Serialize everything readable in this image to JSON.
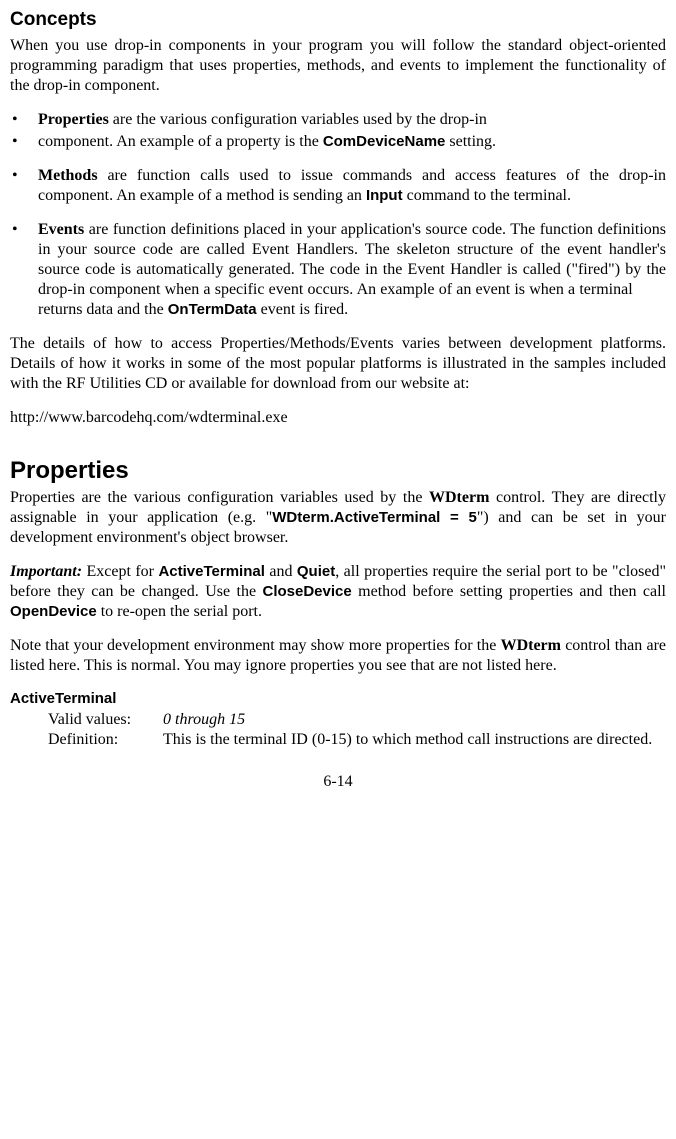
{
  "concepts": {
    "heading": "Concepts",
    "intro": "When you use drop-in components in your program you will follow the standard object-oriented programming paradigm that uses properties, methods, and events to implement the functionality of the drop-in component.",
    "bullets": {
      "b1_lead": "Properties",
      "b1_rest": " are the various configuration variables used by the drop-in",
      "b2_pre": "component. An example of a property is the ",
      "b2_code": "ComDeviceName",
      "b2_post": " setting.",
      "b3_lead": "Methods",
      "b3_mid": " are function calls used to issue commands and access features of the drop-in component. An example of a method is sending an ",
      "b3_code": "Input",
      "b3_post": " command to the terminal.",
      "b4_lead": "Events",
      "b4_mid": " are function definitions placed in your application's source code. The function definitions in your source code are called Event Handlers. The skeleton structure of the event handler's source code is automatically generated. The code in the Event Handler is called (\"fired\") by the drop-in component when a specific event occurs. An example of an event is when a terminal         returns data and the ",
      "b4_code": "OnTermData",
      "b4_post": " event is fired."
    },
    "details_para": "The details of how to access Properties/Methods/Events varies between development platforms. Details of how it works in some of the most popular platforms is illustrated in the samples included with the RF Utilities CD or available for download from our website at:",
    "url": "http://www.barcodehq.com/wdterminal.exe"
  },
  "properties": {
    "heading": "Properties",
    "p1_pre": "Properties are the various configuration variables used by the ",
    "p1_wdterm": "WDterm",
    "p1_mid": " control. They are directly assignable in your application (e.g. \"",
    "p1_code": "WDterm.ActiveTerminal = 5",
    "p1_post": "\") and can be set in your development environment's object browser.",
    "imp_label": "Important:",
    "imp_pre": " Except for ",
    "imp_active": "ActiveTerminal",
    "imp_and": " and ",
    "imp_quiet": "Quiet",
    "imp_mid": ", all properties require the serial port to be \"closed\" before they can be changed. Use the ",
    "imp_close": "CloseDevice",
    "imp_mid2": " method before setting properties and then call ",
    "imp_open": "OpenDevice",
    "imp_post": " to re-open the serial port.",
    "note_pre": "Note that your development environment may show more properties for the ",
    "note_wdterm": "WDterm",
    "note_post": " control than are listed here. This is normal. You may ignore properties you see that are not listed here.",
    "active_terminal": {
      "title": "ActiveTerminal",
      "valid_label": "Valid values:",
      "valid_value": "0 through 15",
      "def_label": "Definition:",
      "def_value": "This is the terminal ID (0-15) to which method call instructions are directed."
    }
  },
  "footer": "6-14"
}
